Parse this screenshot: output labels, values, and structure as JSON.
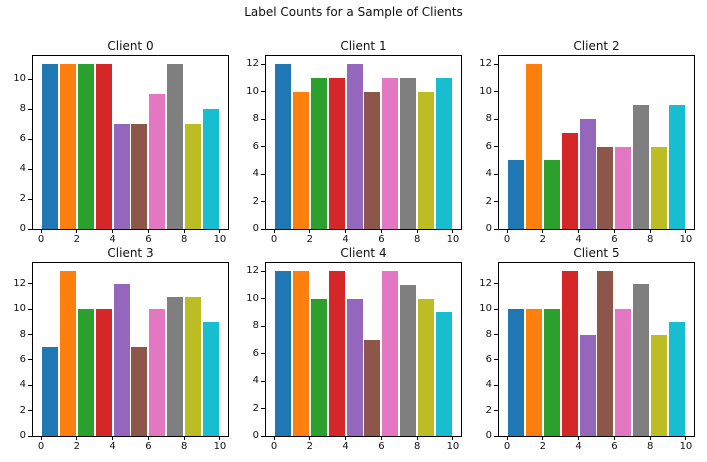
{
  "figure": {
    "suptitle": "Label Counts for a Sample of Clients",
    "background_color": "#ffffff",
    "spine_color": "#000000",
    "text_color": "#111111"
  },
  "palette": [
    "#1f77b4",
    "#ff7f0e",
    "#2ca02c",
    "#d62728",
    "#9467bd",
    "#8c564b",
    "#e377c2",
    "#7f7f7f",
    "#bcbd22",
    "#17becf"
  ],
  "chart_data": {
    "type": "bar",
    "title": "Label Counts for a Sample of Clients",
    "xlabel": "",
    "ylabel": "",
    "grid": false,
    "legend": "none",
    "categories": [
      0,
      1,
      2,
      3,
      4,
      5,
      6,
      7,
      8,
      9
    ],
    "xticks": [
      0,
      2,
      4,
      6,
      8,
      10
    ],
    "xlim": [
      -0.45,
      10.45
    ],
    "bar_width": 0.9,
    "subplots": [
      {
        "title": "Client 0",
        "values": [
          11,
          11,
          11,
          11,
          7,
          7,
          9,
          11,
          7,
          8
        ],
        "yticks": [
          0,
          2,
          4,
          6,
          8,
          10
        ],
        "ylim": [
          0,
          11.55
        ]
      },
      {
        "title": "Client 1",
        "values": [
          12,
          10,
          11,
          11,
          12,
          10,
          11,
          11,
          10,
          11
        ],
        "yticks": [
          0,
          2,
          4,
          6,
          8,
          10,
          12
        ],
        "ylim": [
          0,
          12.6
        ]
      },
      {
        "title": "Client 2",
        "values": [
          5,
          12,
          5,
          7,
          8,
          6,
          6,
          9,
          6,
          9
        ],
        "yticks": [
          0,
          2,
          4,
          6,
          8,
          10,
          12
        ],
        "ylim": [
          0,
          12.6
        ]
      },
      {
        "title": "Client 3",
        "values": [
          7,
          13,
          10,
          10,
          12,
          7,
          10,
          11,
          11,
          9
        ],
        "yticks": [
          0,
          2,
          4,
          6,
          8,
          10,
          12
        ],
        "ylim": [
          0,
          13.65
        ]
      },
      {
        "title": "Client 4",
        "values": [
          12,
          12,
          10,
          12,
          10,
          7,
          12,
          11,
          10,
          9
        ],
        "yticks": [
          0,
          2,
          4,
          6,
          8,
          10,
          12
        ],
        "ylim": [
          0,
          12.6
        ]
      },
      {
        "title": "Client 5",
        "values": [
          10,
          10,
          10,
          13,
          8,
          13,
          10,
          12,
          8,
          9
        ],
        "yticks": [
          0,
          2,
          4,
          6,
          8,
          10,
          12
        ],
        "ylim": [
          0,
          13.65
        ]
      }
    ]
  }
}
